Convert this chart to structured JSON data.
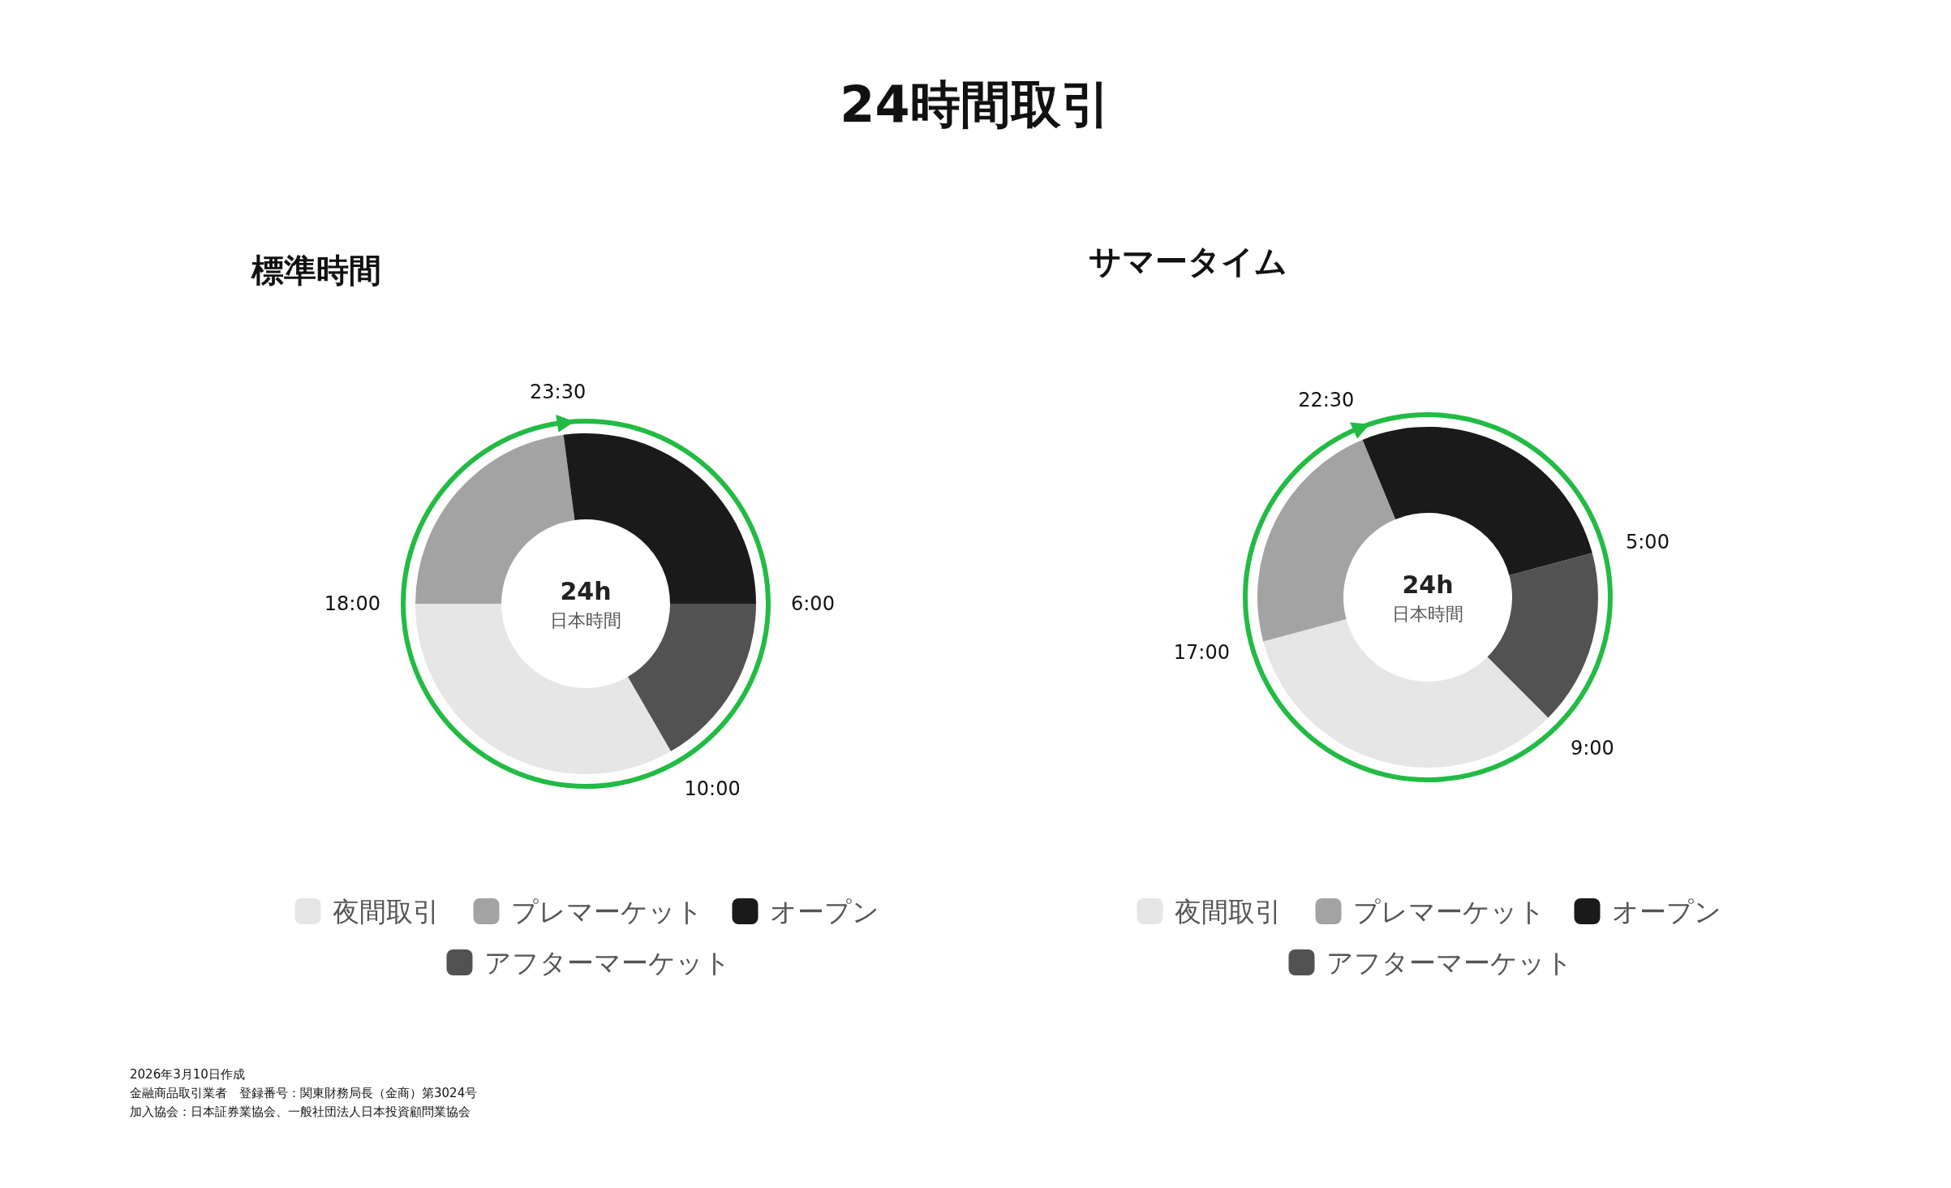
{
  "chart_data": [
    {
      "type": "donut",
      "title": "24時間取引",
      "subtitle": "標準時間",
      "categories": [
        "夜間取引",
        "プレマーケット",
        "オープン",
        "アフターマーケット"
      ],
      "values": [
        33.33,
        22.92,
        27.08,
        16.67
      ],
      "colors": [
        "#e6e6e6",
        "#a3a3a3",
        "#1a1a1a",
        "#525252"
      ],
      "legend": "bottom",
      "annotations": [
        "10:00",
        "18:00",
        "23:30",
        "6:00",
        "24h",
        "日本時間"
      ]
    },
    {
      "type": "donut",
      "subtitle": "サマータイム",
      "categories": [
        "夜間取引",
        "プレマーケット",
        "オープン",
        "アフターマーケット"
      ],
      "values": [
        33.33,
        22.92,
        27.08,
        16.67
      ],
      "colors": [
        "#e6e6e6",
        "#a3a3a3",
        "#1a1a1a",
        "#525252"
      ],
      "legend": "bottom",
      "annotations": [
        "9:00",
        "17:00",
        "22:30",
        "5:00",
        "24h",
        "日本時間",
        "2026年3月10日作成",
        "金融商品取引業者　登録番号：関東財務局長（金商）第3024号",
        "加入協会：日本証券業協会、一般社団法人日本投資顧問業協会"
      ]
    }
  ]
}
